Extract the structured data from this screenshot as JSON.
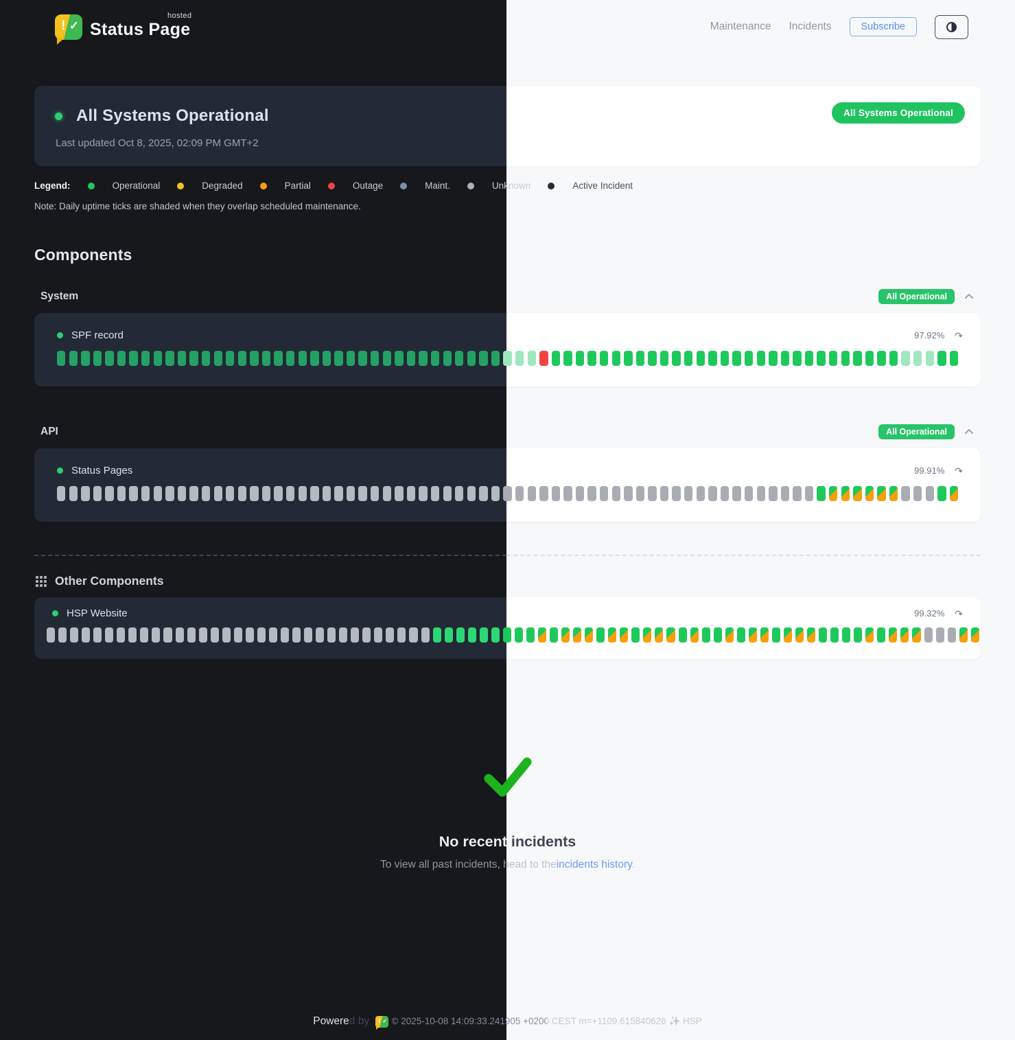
{
  "header": {
    "brand": "Status Page",
    "brand_sup": "hosted",
    "nav": [
      {
        "label": "Maintenance"
      },
      {
        "label": "Incidents"
      }
    ],
    "subscribe_label": "Subscribe",
    "theme_toggle_icon": "half-contrast-circle"
  },
  "banner": {
    "title": "All Systems Operational",
    "subtitle": "Last updated Oct 8, 2025, 02:09 PM GMT+2",
    "badge": "All Systems Operational"
  },
  "legend": {
    "label": "Legend:",
    "items": [
      {
        "label": "Operational",
        "color": "#22c55e"
      },
      {
        "label": "Degraded",
        "color": "#f3c21d"
      },
      {
        "label": "Partial",
        "color": "#f59e0b"
      },
      {
        "label": "Outage",
        "color": "#ef4444"
      },
      {
        "label": "Maint.",
        "color": "#7b90a5"
      },
      {
        "label": "Unknown",
        "color": "#abb1b9"
      },
      {
        "label": "Active Incident",
        "color": "#272c34"
      }
    ],
    "note": "Note: Daily uptime ticks are shaded when they overlap scheduled maintenance."
  },
  "components": {
    "heading": "Components",
    "groups": [
      {
        "name": "System",
        "badge": "All Operational",
        "items": [
          {
            "name": "SPF record",
            "uptime": "97.92%",
            "ticks": "ooooooooooooooooooooooooooooooooooooolllrooooooooooooooooooooooooooooollloo"
          }
        ]
      },
      {
        "name": "API",
        "badge": "All Operational",
        "items": [
          {
            "name": "Status Pages",
            "uptime": "99.91%",
            "ticks": "uuuuuuuuuuuuuuuuuuuuuuuuuuuuuuuuuuuuuuuuuuuuuuuuuuuuuuuuuuuuuuuommmmmmuuuom"
          }
        ]
      }
    ],
    "other": {
      "heading": "Other Components",
      "items": [
        {
          "name": "HSP Website",
          "uptime": "99.32%",
          "ticks": "uuuuuuuuuuuuuuuuuuuuuuuuuuuuuuuuuooooooooomommmommommmomoomommommmoooomommmuuumm"
        }
      ]
    }
  },
  "incidents": {
    "title": "No recent incidents",
    "subtitle_prefix": "To view all past incidents, head to the ",
    "link_label": "incidents history",
    "subtitle_suffix": "."
  },
  "footer": {
    "powered_by": "Powered by",
    "copyright": "© 2025-10-08 14:09:33.241905 +0200 CEST m=+1109.615840626 ✨ HSP"
  },
  "colors": {
    "accent_green": "#1fc35f",
    "badge_green": "#28c469",
    "link_blue": "#6b9af3",
    "subscribe_blue": "#5b8def",
    "ticks": {
      "operational": "#1ec95b",
      "operational_dark": "#24a164",
      "operational_dark_bright": "#2bd873",
      "light_green": "#9fe7bf",
      "outage": "#ef4444",
      "unknown": "#a9adb3",
      "unknown_dark": "#b5bac1",
      "maint_orange": "#f59f0b"
    }
  }
}
